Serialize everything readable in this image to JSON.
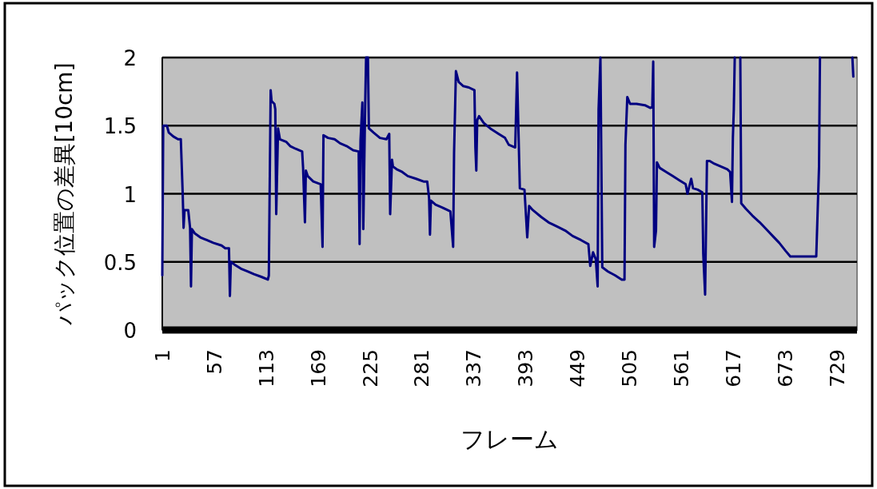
{
  "chart_data": {
    "type": "line",
    "xlabel": "フレーム",
    "ylabel": "パック位置の差異[10cm]",
    "x": [
      1,
      2,
      6,
      8,
      13,
      18,
      21,
      23,
      24,
      25,
      29,
      31,
      32,
      33,
      36,
      42,
      49,
      56,
      65,
      69,
      73,
      74,
      75,
      79,
      86,
      93,
      100,
      108,
      115,
      116,
      118,
      119,
      122,
      123,
      124,
      126,
      128,
      135,
      139,
      145,
      152,
      153,
      155,
      156,
      158,
      164,
      172,
      174,
      175,
      180,
      187,
      193,
      200,
      207,
      213,
      214,
      215,
      217,
      218,
      220,
      221,
      223,
      224,
      229,
      236,
      243,
      246,
      247,
      249,
      250,
      254,
      260,
      266,
      275,
      283,
      287,
      289,
      290,
      291,
      296,
      303,
      309,
      312,
      315,
      316,
      318,
      321,
      326,
      332,
      338,
      339,
      340,
      341,
      343,
      348,
      355,
      364,
      371,
      375,
      382,
      384,
      387,
      392,
      395,
      397,
      401,
      410,
      418,
      427,
      436,
      444,
      453,
      461,
      463,
      466,
      469,
      471,
      472,
      474,
      476,
      482,
      490,
      497,
      500,
      501,
      503,
      506,
      513,
      522,
      528,
      530,
      531,
      532,
      534,
      535,
      538,
      545,
      552,
      559,
      566,
      568,
      572,
      574,
      579,
      584,
      585,
      587,
      589,
      592,
      597,
      604,
      611,
      614,
      616,
      617,
      618,
      619,
      622,
      625,
      626,
      631,
      638,
      646,
      653,
      660,
      667,
      674,
      679,
      707,
      710,
      711,
      729,
      746,
      747
    ],
    "series": [
      {
        "color": "#000080",
        "values": [
          0.4,
          1.5,
          1.5,
          1.45,
          1.42,
          1.4,
          1.4,
          1.01,
          0.75,
          0.88,
          0.88,
          0.75,
          0.32,
          0.74,
          0.71,
          0.68,
          0.66,
          0.64,
          0.62,
          0.6,
          0.6,
          0.25,
          0.5,
          0.48,
          0.45,
          0.43,
          0.41,
          0.39,
          0.37,
          0.4,
          1.76,
          1.68,
          1.66,
          1.62,
          0.85,
          1.48,
          1.4,
          1.38,
          1.35,
          1.33,
          1.31,
          1.19,
          0.79,
          1.17,
          1.13,
          1.09,
          1.07,
          0.61,
          1.43,
          1.41,
          1.4,
          1.37,
          1.35,
          1.32,
          1.31,
          0.63,
          1.39,
          1.67,
          0.74,
          1.64,
          2.0,
          2.0,
          1.48,
          1.45,
          1.41,
          1.4,
          1.44,
          0.85,
          1.25,
          1.2,
          1.18,
          1.16,
          1.13,
          1.11,
          1.09,
          1.09,
          0.97,
          0.7,
          0.95,
          0.92,
          0.9,
          0.88,
          0.87,
          0.61,
          1.3,
          1.9,
          1.82,
          1.79,
          1.78,
          1.76,
          1.34,
          1.17,
          1.54,
          1.57,
          1.52,
          1.48,
          1.44,
          1.41,
          1.36,
          1.34,
          1.89,
          1.04,
          1.03,
          0.68,
          0.91,
          0.88,
          0.83,
          0.79,
          0.76,
          0.73,
          0.69,
          0.66,
          0.63,
          0.47,
          0.57,
          0.52,
          0.32,
          1.62,
          2.0,
          0.46,
          0.43,
          0.4,
          0.37,
          0.37,
          1.36,
          1.71,
          1.66,
          1.66,
          1.65,
          1.63,
          1.64,
          1.97,
          0.61,
          0.73,
          1.23,
          1.19,
          1.16,
          1.13,
          1.1,
          1.07,
          1.0,
          1.11,
          1.04,
          1.03,
          1.01,
          0.56,
          0.26,
          1.24,
          1.24,
          1.22,
          1.2,
          1.18,
          1.16,
          0.94,
          1.41,
          1.62,
          2.0,
          null,
          2.0,
          0.93,
          0.89,
          0.84,
          0.79,
          0.74,
          0.69,
          0.64,
          0.58,
          0.54,
          0.54,
          1.2,
          2.0,
          null,
          2.0,
          1.86
        ]
      }
    ],
    "xlim": [
      1,
      751
    ],
    "ylim": [
      0,
      2
    ],
    "xticks": [
      1,
      57,
      113,
      169,
      225,
      281,
      337,
      393,
      449,
      505,
      561,
      617,
      673,
      729
    ],
    "yticks": [
      0,
      0.5,
      1,
      1.5,
      2
    ],
    "grid": "y"
  }
}
